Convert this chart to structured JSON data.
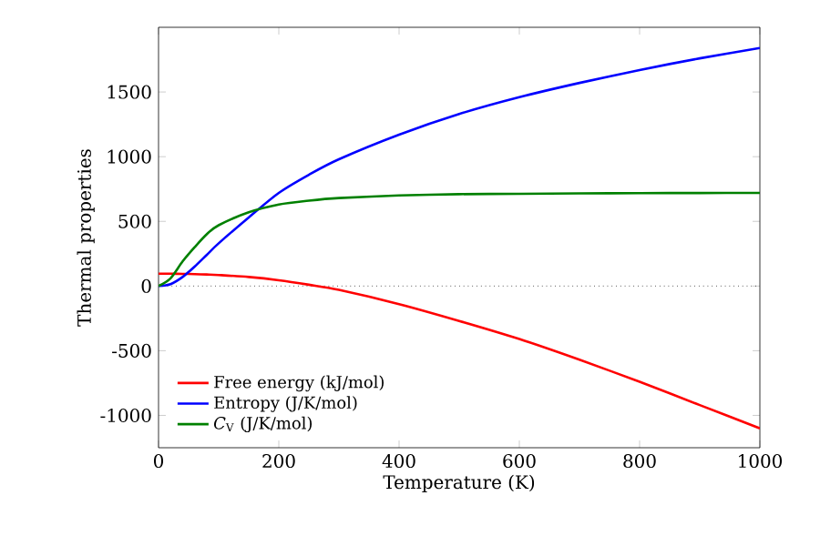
{
  "chart_data": {
    "type": "line",
    "xlabel": "Temperature (K)",
    "ylabel": "Thermal properties",
    "x": [
      0,
      20,
      40,
      60,
      80,
      100,
      150,
      200,
      250,
      300,
      400,
      500,
      600,
      700,
      800,
      900,
      1000
    ],
    "series": [
      {
        "name": "Free energy (kJ/mol)",
        "color": "#ff0000",
        "values": [
          95,
          95,
          94,
          92,
          89,
          85,
          70,
          45,
          10,
          -30,
          -140,
          -270,
          -410,
          -570,
          -740,
          -920,
          -1100
        ]
      },
      {
        "name": "Entropy (J/K/mol)",
        "color": "#0000ff",
        "values": [
          0,
          15,
          70,
          150,
          240,
          330,
          530,
          720,
          860,
          980,
          1170,
          1330,
          1460,
          1570,
          1670,
          1760,
          1840
        ]
      },
      {
        "name": "*C*$_{V}$ (J/K/mol)",
        "color": "#008000",
        "values": [
          0,
          60,
          190,
          300,
          400,
          470,
          570,
          630,
          660,
          680,
          700,
          710,
          713,
          716,
          718,
          719,
          720
        ]
      }
    ],
    "xlim": [
      0,
      1000
    ],
    "ylim": [
      -1250,
      2000
    ],
    "xticks": [
      0,
      200,
      400,
      600,
      800,
      1000
    ],
    "yticks": [
      -1000,
      -500,
      0,
      500,
      1000,
      1500
    ],
    "ref_lines": [
      {
        "axis": "y",
        "value": 0,
        "color": "#000000",
        "line_style": "dotted"
      }
    ],
    "legend": "bottom left",
    "grid": false,
    "marker": "none",
    "line_style": "solid"
  }
}
